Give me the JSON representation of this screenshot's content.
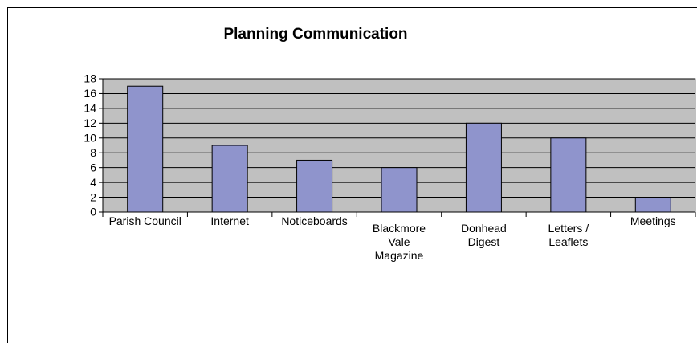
{
  "chart_data": {
    "type": "bar",
    "title": "Planning Communication",
    "categories": [
      "Parish Council",
      "Internet",
      "Noticeboards",
      "Blackmore\nVale\nMagazine",
      "Donhead\nDigest",
      "Letters /\nLeaflets",
      "Meetings"
    ],
    "values": [
      17,
      9,
      7,
      6,
      12,
      10,
      2
    ],
    "color": "#8f94cc",
    "ylim": [
      0,
      18
    ],
    "yticks": [
      0,
      2,
      4,
      6,
      8,
      10,
      12,
      14,
      16,
      18
    ],
    "grid": true
  }
}
